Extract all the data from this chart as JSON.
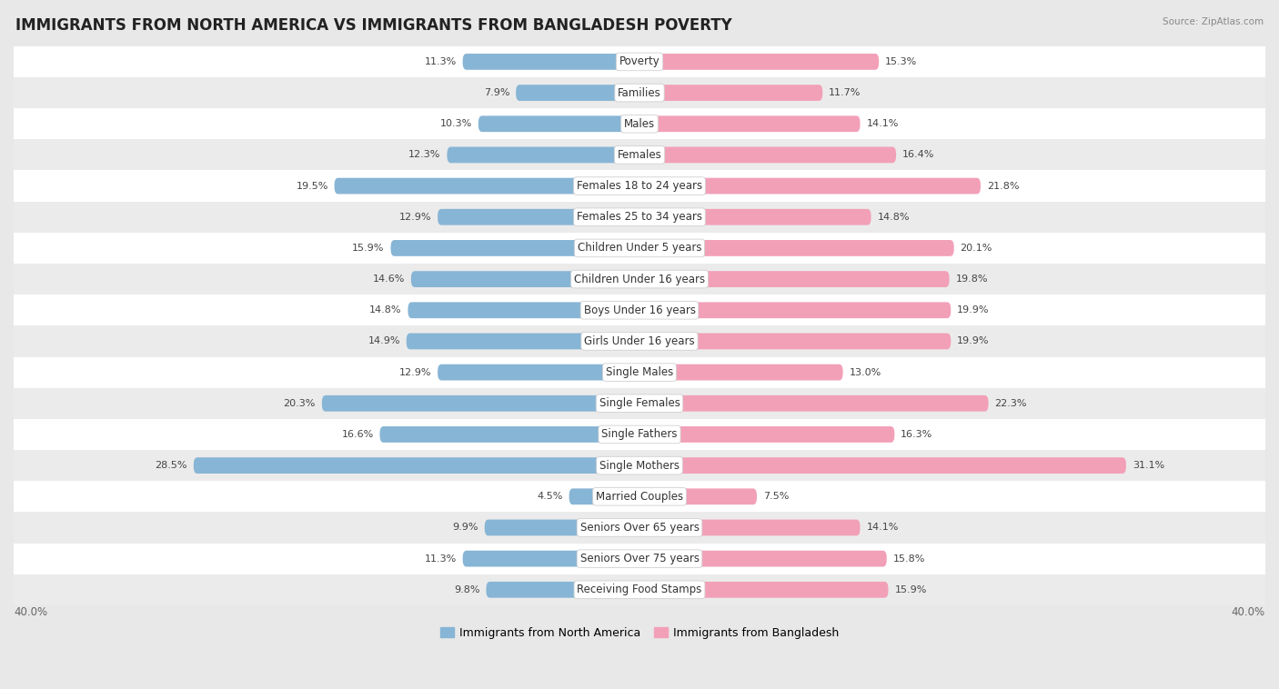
{
  "title": "IMMIGRANTS FROM NORTH AMERICA VS IMMIGRANTS FROM BANGLADESH POVERTY",
  "source": "Source: ZipAtlas.com",
  "categories": [
    "Poverty",
    "Families",
    "Males",
    "Females",
    "Females 18 to 24 years",
    "Females 25 to 34 years",
    "Children Under 5 years",
    "Children Under 16 years",
    "Boys Under 16 years",
    "Girls Under 16 years",
    "Single Males",
    "Single Females",
    "Single Fathers",
    "Single Mothers",
    "Married Couples",
    "Seniors Over 65 years",
    "Seniors Over 75 years",
    "Receiving Food Stamps"
  ],
  "left_values": [
    11.3,
    7.9,
    10.3,
    12.3,
    19.5,
    12.9,
    15.9,
    14.6,
    14.8,
    14.9,
    12.9,
    20.3,
    16.6,
    28.5,
    4.5,
    9.9,
    11.3,
    9.8
  ],
  "right_values": [
    15.3,
    11.7,
    14.1,
    16.4,
    21.8,
    14.8,
    20.1,
    19.8,
    19.9,
    19.9,
    13.0,
    22.3,
    16.3,
    31.1,
    7.5,
    14.1,
    15.8,
    15.9
  ],
  "left_color": "#87b5d5",
  "right_color": "#f2a0b8",
  "bar_height": 0.52,
  "xlim": 40.0,
  "bg_color": "#e8e8e8",
  "row_bg_even": "#ffffff",
  "row_bg_odd": "#ebebeb",
  "legend_left": "Immigrants from North America",
  "legend_right": "Immigrants from Bangladesh",
  "title_fontsize": 12,
  "label_fontsize": 8.5,
  "value_fontsize": 8.0,
  "axis_label_fontsize": 8.5
}
